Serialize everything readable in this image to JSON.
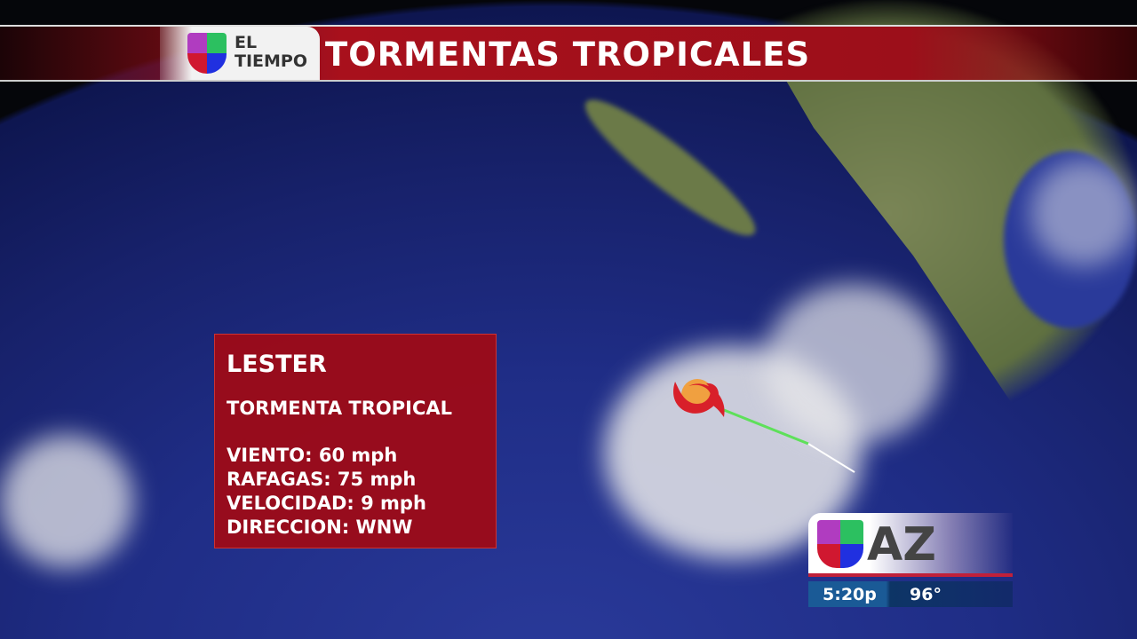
{
  "header": {
    "brand_line1": "EL",
    "brand_line2": "TIEMPO",
    "title": "TORMENTAS TROPICALES"
  },
  "storm": {
    "name": "LESTER",
    "type": "TORMENTA TROPICAL",
    "rows": [
      "VIENTO: 60 mph",
      "RAFAGAS: 75 mph",
      "VELOCIDAD: 9 mph",
      "DIRECCION: WNW"
    ],
    "icon": "hurricane-icon",
    "track_colors": [
      "#5ee05a",
      "#ffffff"
    ]
  },
  "station": {
    "label": "AZ",
    "time": "5:20p",
    "temperature": "96°"
  },
  "colors": {
    "banner": "#a8101c",
    "card": "#a00a14",
    "ocean": "#1f2d86"
  }
}
